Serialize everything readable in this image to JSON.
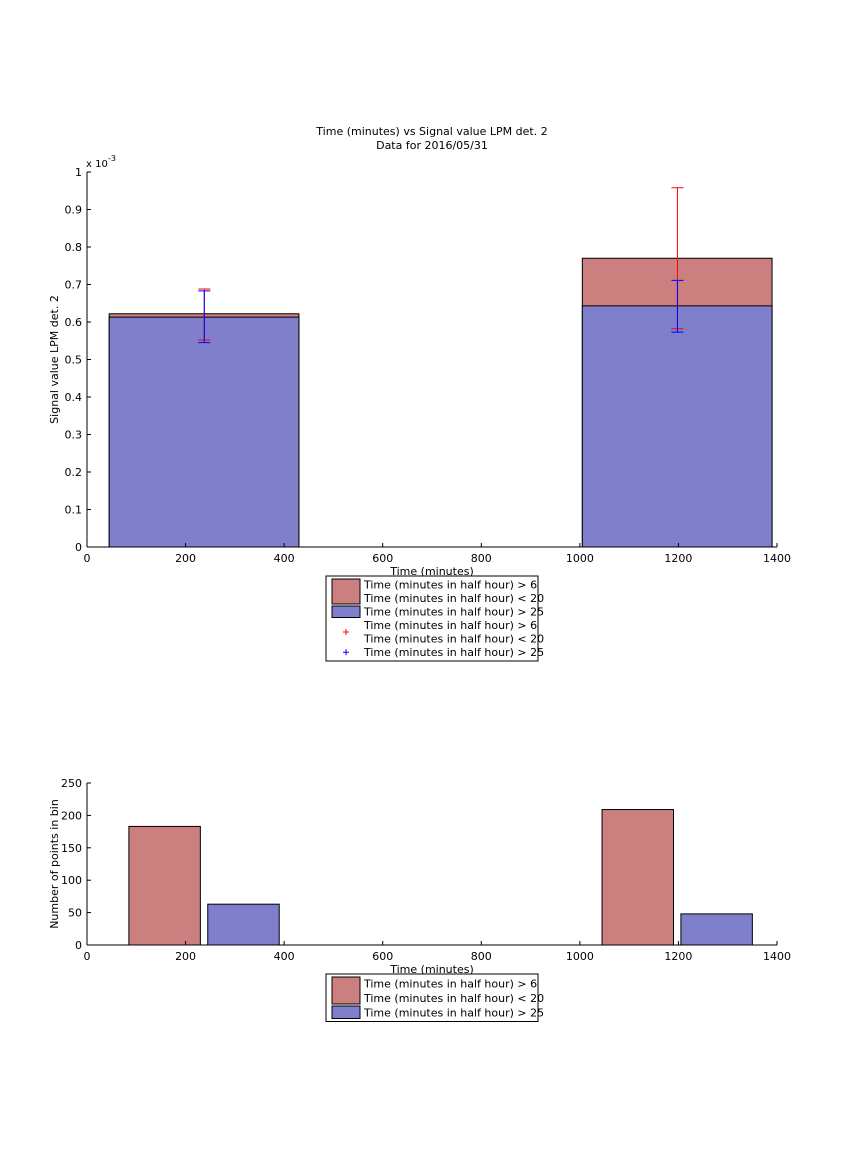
{
  "chart_data": [
    {
      "type": "bar",
      "title": "Time (minutes) vs Signal value LPM det. 2",
      "subtitle": "Data for 2016/05/31",
      "xlabel": "Time (minutes)",
      "ylabel": "Signal value LPM det. 2",
      "y_exponent_label": "x 10",
      "y_exponent_power": "-3",
      "xlim": [
        0,
        1400
      ],
      "ylim": [
        0,
        1
      ],
      "xticks": [
        0,
        200,
        400,
        600,
        800,
        1000,
        1200,
        1400
      ],
      "yticks": [
        0,
        0.1,
        0.2,
        0.3,
        0.4,
        0.5,
        0.6,
        0.7,
        0.8,
        0.9,
        1
      ],
      "grid": false,
      "legend_position": "below",
      "bars": [
        {
          "x_start": 45,
          "x_end": 430,
          "red_top": 0.622,
          "blue_top": 0.613
        },
        {
          "x_start": 1005,
          "x_end": 1390,
          "red_top": 0.77,
          "blue_top": 0.643
        }
      ],
      "error_bars": [
        {
          "series": "red",
          "x": 238,
          "low": 0.552,
          "high": 0.688
        },
        {
          "series": "blue",
          "x": 238,
          "low": 0.545,
          "high": 0.683
        },
        {
          "series": "red",
          "x": 1198,
          "low": 0.582,
          "high": 0.958
        },
        {
          "series": "blue",
          "x": 1198,
          "low": 0.573,
          "high": 0.711
        }
      ],
      "legend": [
        {
          "kind": "patch",
          "series": "red",
          "lines": [
            "Time (minutes in half hour) > 6",
            "Time (minutes in half hour) < 20"
          ]
        },
        {
          "kind": "patch",
          "series": "blue",
          "lines": [
            "Time (minutes in half hour) > 25"
          ]
        },
        {
          "kind": "marker",
          "series": "red",
          "lines": [
            "Time (minutes in half hour) > 6",
            "Time (minutes in half hour) < 20"
          ]
        },
        {
          "kind": "marker",
          "series": "blue",
          "lines": [
            "Time (minutes in half hour) > 25"
          ]
        }
      ]
    },
    {
      "type": "bar",
      "xlabel": "Time (minutes)",
      "ylabel": "Number of points in bin",
      "xlim": [
        0,
        1400
      ],
      "ylim": [
        0,
        250
      ],
      "xticks": [
        0,
        200,
        400,
        600,
        800,
        1000,
        1200,
        1400
      ],
      "yticks": [
        0,
        50,
        100,
        150,
        200,
        250
      ],
      "grid": false,
      "legend_position": "below",
      "bars": [
        {
          "series": "red",
          "x_start": 85,
          "x_end": 230,
          "value": 183
        },
        {
          "series": "blue",
          "x_start": 245,
          "x_end": 390,
          "value": 63
        },
        {
          "series": "red",
          "x_start": 1045,
          "x_end": 1190,
          "value": 209
        },
        {
          "series": "blue",
          "x_start": 1205,
          "x_end": 1350,
          "value": 48
        }
      ],
      "legend": [
        {
          "kind": "patch",
          "series": "red",
          "lines": [
            "Time (minutes in half hour) > 6",
            "Time (minutes in half hour) < 20"
          ]
        },
        {
          "kind": "patch",
          "series": "blue",
          "lines": [
            "Time (minutes in half hour) > 25"
          ]
        }
      ]
    }
  ],
  "colors": {
    "red_fill": "#cc7f7f",
    "blue_fill": "#7f7fcc",
    "red_marker": "#ff0000",
    "blue_marker": "#0000ff",
    "axis": "#000000"
  }
}
